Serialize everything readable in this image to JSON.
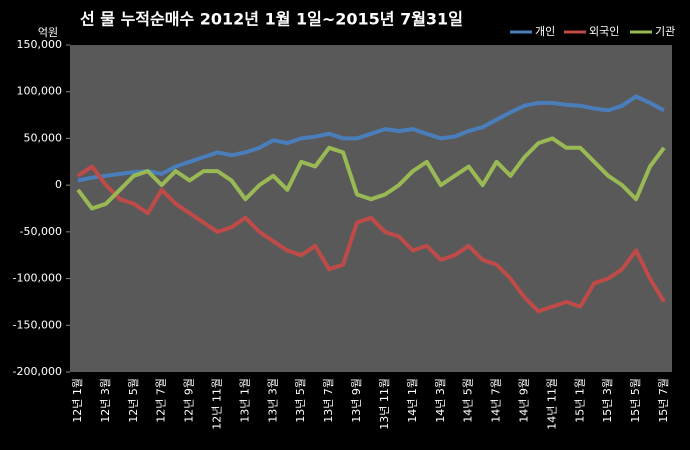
{
  "chart_data": {
    "type": "line",
    "title": "선 물 누적순매수 2012년 1월 1일~2015년 7월31일",
    "y_unit": "억원",
    "categories": [
      "12년 1월",
      null,
      "12년 3월",
      null,
      "12년 5월",
      null,
      "12년 7월",
      null,
      "12년 9월",
      null,
      "12년 11월",
      null,
      "13년 1월",
      null,
      "13년 3월",
      null,
      "13년 5월",
      null,
      "13년 7월",
      null,
      "13년 9월",
      null,
      "13년 11월",
      null,
      "14년 1월",
      null,
      "14년 3월",
      null,
      "14년 5월",
      null,
      "14년 7월",
      null,
      "14년 9월",
      null,
      "14년 11월",
      null,
      "15년 1월",
      null,
      "15년 3월",
      null,
      "15년 5월",
      null,
      "15년 7월"
    ],
    "series": [
      {
        "name": "개인",
        "color": "#4a7ebb",
        "values": [
          5000,
          8000,
          10000,
          12000,
          14000,
          15000,
          12000,
          20000,
          25000,
          30000,
          35000,
          32000,
          35000,
          40000,
          48000,
          45000,
          50000,
          52000,
          55000,
          50000,
          50000,
          55000,
          60000,
          58000,
          60000,
          55000,
          50000,
          52000,
          58000,
          62000,
          70000,
          78000,
          85000,
          88000,
          88000,
          86000,
          85000,
          82000,
          80000,
          85000,
          95000,
          88000,
          80000
        ]
      },
      {
        "name": "외국인",
        "color": "#be4b48",
        "values": [
          10000,
          20000,
          0,
          -15000,
          -20000,
          -30000,
          -5000,
          -20000,
          -30000,
          -40000,
          -50000,
          -45000,
          -35000,
          -50000,
          -60000,
          -70000,
          -75000,
          -65000,
          -90000,
          -85000,
          -40000,
          -35000,
          -50000,
          -55000,
          -70000,
          -65000,
          -80000,
          -75000,
          -65000,
          -80000,
          -85000,
          -100000,
          -120000,
          -135000,
          -130000,
          -125000,
          -130000,
          -105000,
          -100000,
          -90000,
          -70000,
          -100000,
          -125000
        ]
      },
      {
        "name": "기관",
        "color": "#98b954",
        "values": [
          -5000,
          -25000,
          -20000,
          -5000,
          10000,
          15000,
          0,
          15000,
          5000,
          15000,
          15000,
          5000,
          -15000,
          0,
          10000,
          -5000,
          25000,
          20000,
          40000,
          35000,
          -10000,
          -15000,
          -10000,
          0,
          15000,
          25000,
          0,
          10000,
          20000,
          0,
          25000,
          10000,
          30000,
          45000,
          50000,
          40000,
          40000,
          25000,
          10000,
          0,
          -15000,
          20000,
          40000
        ]
      }
    ],
    "ylim": [
      -200000,
      150000
    ],
    "yticks": [
      {
        "value": -200000,
        "label": "-200,000"
      },
      {
        "value": -150000,
        "label": "-150,000"
      },
      {
        "value": -100000,
        "label": "-100,000"
      },
      {
        "value": -50000,
        "label": "-50,000"
      },
      0,
      {
        "value": 50000,
        "label": "50,000"
      },
      {
        "value": 100000,
        "label": "100,000"
      },
      {
        "value": 150000,
        "label": "150,000"
      }
    ],
    "legend": "top-right",
    "grid": false
  }
}
